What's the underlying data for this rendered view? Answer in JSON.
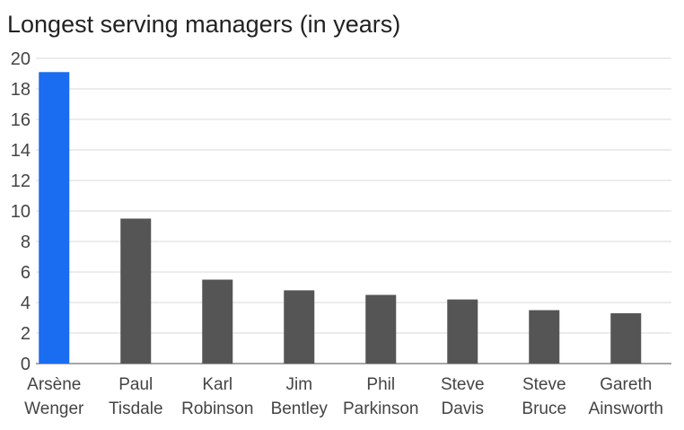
{
  "chart_data": {
    "type": "bar",
    "title": "Longest serving managers (in years)",
    "xlabel": "",
    "ylabel": "",
    "ylim": [
      0,
      20
    ],
    "yticks": [
      0,
      2,
      4,
      6,
      8,
      10,
      12,
      14,
      16,
      18,
      20
    ],
    "grid": true,
    "categories": [
      [
        "Arsène",
        "Wenger"
      ],
      [
        "Paul",
        "Tisdale"
      ],
      [
        "Karl",
        "Robinson"
      ],
      [
        "Jim",
        "Bentley"
      ],
      [
        "Phil",
        "Parkinson"
      ],
      [
        "Steve",
        "Davis"
      ],
      [
        "Steve",
        "Bruce"
      ],
      [
        "Gareth",
        "Ainsworth"
      ]
    ],
    "values": [
      19.1,
      9.5,
      5.5,
      4.8,
      4.5,
      4.2,
      3.5,
      3.3
    ],
    "colors": {
      "highlight": "#1a6cf0",
      "default": "#555555",
      "grid": "#d9d9d9",
      "axis": "#888888"
    },
    "highlight_index": 0
  }
}
